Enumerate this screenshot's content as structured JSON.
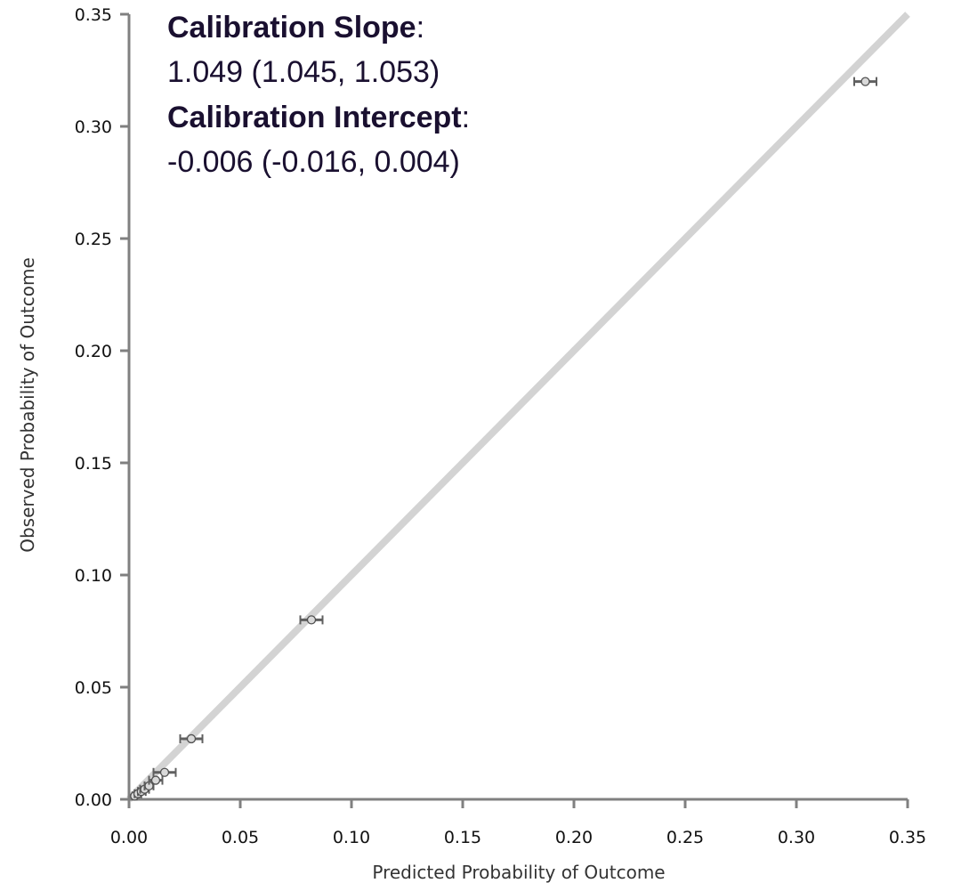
{
  "chart_data": {
    "type": "scatter",
    "title": "",
    "xlabel": "Predicted Probability of Outcome",
    "ylabel": "Observed Probability of Outcome",
    "xlim": [
      0,
      0.35
    ],
    "ylim": [
      0,
      0.35
    ],
    "x_ticks": [
      "0.00",
      "0.05",
      "0.10",
      "0.15",
      "0.20",
      "0.25",
      "0.30",
      "0.35"
    ],
    "y_ticks": [
      "0.00",
      "0.05",
      "0.10",
      "0.15",
      "0.20",
      "0.25",
      "0.30",
      "0.35"
    ],
    "grid": false,
    "reference_line": {
      "type": "identity",
      "from": [
        0,
        0
      ],
      "to": [
        0.35,
        0.35
      ],
      "color": "#d3d3d3"
    },
    "annotations": {
      "slope_label": "Calibration Slope",
      "slope_colon": ":",
      "slope_value": "1.049 (1.045, 1.053)",
      "intercept_label": "Calibration Intercept",
      "intercept_colon": ":",
      "intercept_value": "-0.006 (-0.016, 0.004)"
    },
    "points": [
      {
        "x": 0.0025,
        "y": 0.0015,
        "xerr_low": 0.0015,
        "xerr_high": 0.0035
      },
      {
        "x": 0.004,
        "y": 0.0025,
        "xerr_low": 0.0025,
        "xerr_high": 0.0055
      },
      {
        "x": 0.0055,
        "y": 0.0035,
        "xerr_low": 0.004,
        "xerr_high": 0.0075
      },
      {
        "x": 0.007,
        "y": 0.0045,
        "xerr_low": 0.005,
        "xerr_high": 0.009
      },
      {
        "x": 0.009,
        "y": 0.006,
        "xerr_low": 0.007,
        "xerr_high": 0.011
      },
      {
        "x": 0.012,
        "y": 0.0085,
        "xerr_low": 0.009,
        "xerr_high": 0.015
      },
      {
        "x": 0.016,
        "y": 0.012,
        "xerr_low": 0.011,
        "xerr_high": 0.021
      },
      {
        "x": 0.028,
        "y": 0.027,
        "xerr_low": 0.023,
        "xerr_high": 0.033
      },
      {
        "x": 0.082,
        "y": 0.08,
        "xerr_low": 0.077,
        "xerr_high": 0.087
      },
      {
        "x": 0.331,
        "y": 0.32,
        "xerr_low": 0.326,
        "xerr_high": 0.336
      }
    ],
    "colors": {
      "axis": "#808080",
      "reference_line": "#d3d3d3",
      "error_bar": "#606060",
      "marker_edge": "#505050",
      "marker_fill": "#d9d9d9"
    }
  }
}
